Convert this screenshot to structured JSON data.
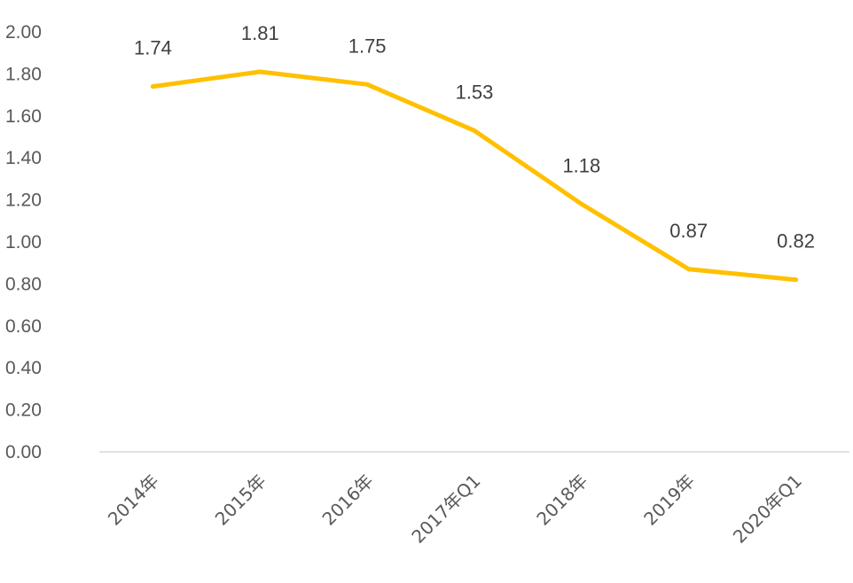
{
  "chart_data": {
    "type": "line",
    "title": "",
    "xlabel": "",
    "ylabel": "",
    "categories": [
      "2014年",
      "2015年",
      "2016年",
      "2017年Q1",
      "2018年",
      "2019年",
      "2020年Q1"
    ],
    "series": [
      {
        "values": [
          1.74,
          1.81,
          1.75,
          1.53,
          1.18,
          0.87,
          0.82
        ]
      }
    ],
    "data_labels": [
      "1.74",
      "1.81",
      "1.75",
      "1.53",
      "1.18",
      "0.87",
      "0.82"
    ],
    "y_ticks": [
      "0.00",
      "0.20",
      "0.40",
      "0.60",
      "0.80",
      "1.00",
      "1.20",
      "1.40",
      "1.60",
      "1.80",
      "2.00"
    ],
    "ylim": [
      0,
      2.0
    ],
    "grid": false,
    "legend": "none",
    "colors": {
      "line": "#FFC000",
      "axis": "#D9D9D9",
      "tick_text": "#595959",
      "label_text": "#404040"
    }
  }
}
